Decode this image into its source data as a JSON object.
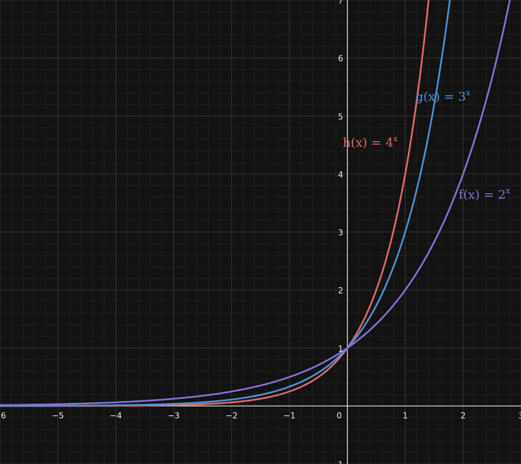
{
  "chart_data": {
    "type": "line",
    "title": "",
    "xlabel": "",
    "ylabel": "",
    "xlim": [
      -6,
      3
    ],
    "ylim": [
      -1,
      7
    ],
    "grid": true,
    "x_ticks": [
      "-6",
      "-5",
      "-4",
      "-3",
      "-2",
      "-1",
      "0",
      "1",
      "2",
      "3"
    ],
    "y_ticks": [
      "-1",
      "1",
      "2",
      "3",
      "4",
      "5",
      "6",
      "7"
    ],
    "origin_label": "0",
    "series": [
      {
        "name": "h(x) = 4^x",
        "label_text": "h(x) = 4",
        "label_sup": "x",
        "base": 4,
        "color": "#e06c6c",
        "x": [
          -6,
          -5,
          -4,
          -3,
          -2,
          -1,
          0,
          0.5,
          1,
          1.25,
          1.4
        ],
        "y": [
          0.0002,
          0.001,
          0.0039,
          0.0156,
          0.0625,
          0.25,
          1,
          2,
          4,
          5.66,
          6.96
        ]
      },
      {
        "name": "g(x) = 3^x",
        "label_text": "g(x) = 3",
        "label_sup": "x",
        "base": 3,
        "color": "#4f92d4",
        "x": [
          -6,
          -5,
          -4,
          -3,
          -2,
          -1,
          0,
          0.5,
          1,
          1.5,
          1.77
        ],
        "y": [
          0.0014,
          0.0041,
          0.0123,
          0.037,
          0.1111,
          0.3333,
          1,
          1.73,
          3,
          5.2,
          6.99
        ]
      },
      {
        "name": "f(x) = 2^x",
        "label_text": "f(x) = 2",
        "label_sup": "x",
        "base": 2,
        "color": "#8a72d6",
        "x": [
          -6,
          -5,
          -4,
          -3,
          -2,
          -1,
          0,
          1,
          2,
          2.5,
          2.8
        ],
        "y": [
          0.0156,
          0.0313,
          0.0625,
          0.125,
          0.25,
          0.5,
          1,
          2,
          4,
          5.66,
          6.96
        ]
      }
    ]
  }
}
